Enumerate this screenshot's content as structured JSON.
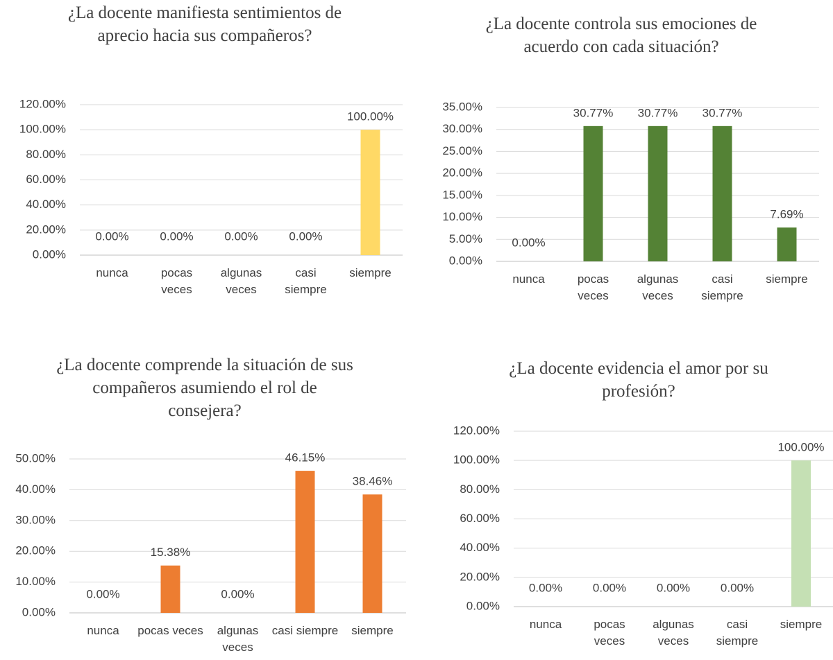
{
  "chart_data": [
    {
      "type": "bar",
      "title": "¿La docente manifiesta sentimientos de aprecio hacia sus compañeros?",
      "categories": [
        "nunca",
        "pocas veces",
        "algunas veces",
        "casi siempre",
        "siempre"
      ],
      "values": [
        0,
        0,
        0,
        0,
        100
      ],
      "value_labels": [
        "0.00%",
        "0.00%",
        "0.00%",
        "0.00%",
        "100.00%"
      ],
      "color": "#ffd966",
      "ylim": [
        0,
        120
      ],
      "yticks": [
        {
          "value": 0,
          "label": "0.00%"
        },
        {
          "value": 20,
          "label": "20.00%"
        },
        {
          "value": 40,
          "label": "40.00%"
        },
        {
          "value": 60,
          "label": "60.00%"
        },
        {
          "value": 80,
          "label": "80.00%"
        },
        {
          "value": 100,
          "label": "100.00%"
        },
        {
          "value": 120,
          "label": "120.00%"
        }
      ],
      "grid": true
    },
    {
      "type": "bar",
      "title": "¿La docente controla sus emociones de acuerdo con cada situación?",
      "categories": [
        "nunca",
        "pocas veces",
        "algunas veces",
        "casi siempre",
        "siempre"
      ],
      "values": [
        0,
        30.77,
        30.77,
        30.77,
        7.69
      ],
      "value_labels": [
        "0.00%",
        "30.77%",
        "30.77%",
        "30.77%",
        "7.69%"
      ],
      "color": "#548235",
      "ylim": [
        0,
        35
      ],
      "yticks": [
        {
          "value": 0,
          "label": "0.00%"
        },
        {
          "value": 5,
          "label": "5.00%"
        },
        {
          "value": 10,
          "label": "10.00%"
        },
        {
          "value": 15,
          "label": "15.00%"
        },
        {
          "value": 20,
          "label": "20.00%"
        },
        {
          "value": 25,
          "label": "25.00%"
        },
        {
          "value": 30,
          "label": "30.00%"
        },
        {
          "value": 35,
          "label": "35.00%"
        }
      ],
      "grid": true
    },
    {
      "type": "bar",
      "title": "¿La docente comprende la situación de sus compañeros asumiendo el rol de consejera?",
      "categories": [
        "nunca",
        "pocas veces",
        "algunas veces",
        "casi siempre",
        "siempre"
      ],
      "values": [
        0,
        15.38,
        0,
        46.15,
        38.46
      ],
      "value_labels": [
        "0.00%",
        "15.38%",
        "0.00%",
        "46.15%",
        "38.46%"
      ],
      "color": "#ed7d31",
      "ylim": [
        0,
        50
      ],
      "yticks": [
        {
          "value": 0,
          "label": "0.00%"
        },
        {
          "value": 10,
          "label": "10.00%"
        },
        {
          "value": 20,
          "label": "20.00%"
        },
        {
          "value": 30,
          "label": "30.00%"
        },
        {
          "value": 40,
          "label": "40.00%"
        },
        {
          "value": 50,
          "label": "50.00%"
        }
      ],
      "grid": true
    },
    {
      "type": "bar",
      "title": "¿La docente evidencia el amor por su profesión?",
      "categories": [
        "nunca",
        "pocas veces",
        "algunas veces",
        "casi siempre",
        "siempre"
      ],
      "values": [
        0,
        0,
        0,
        0,
        100
      ],
      "value_labels": [
        "0.00%",
        "0.00%",
        "0.00%",
        "0.00%",
        "100.00%"
      ],
      "color": "#c5e0b4",
      "ylim": [
        0,
        120
      ],
      "yticks": [
        {
          "value": 0,
          "label": "0.00%"
        },
        {
          "value": 20,
          "label": "20.00%"
        },
        {
          "value": 40,
          "label": "40.00%"
        },
        {
          "value": 60,
          "label": "60.00%"
        },
        {
          "value": 80,
          "label": "80.00%"
        },
        {
          "value": 100,
          "label": "100.00%"
        },
        {
          "value": 120,
          "label": "120.00%"
        }
      ],
      "grid": true
    }
  ]
}
